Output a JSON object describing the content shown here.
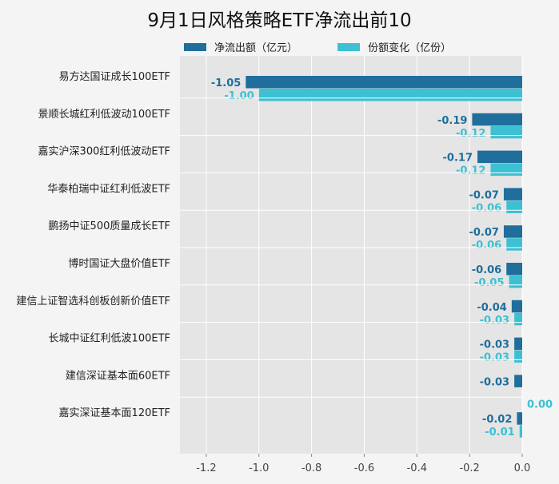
{
  "chart_data": {
    "type": "bar",
    "orientation": "horizontal",
    "title": "9月1日风格策略ETF净流出前10",
    "categories": [
      "易方达国证成长100ETF",
      "景顺长城红利低波动100ETF",
      "嘉实沪深300红利低波动ETF",
      "华泰柏瑞中证红利低波ETF",
      "鹏扬中证500质量成长ETF",
      "博时国证大盘价值ETF",
      "建信上证智选科创板创新价值ETF",
      "长城中证红利低波100ETF",
      "建信深证基本面60ETF",
      "嘉实深证基本面120ETF"
    ],
    "series": [
      {
        "name": "净流出额（亿元）",
        "color": "#1f6e9c",
        "values": [
          -1.05,
          -0.19,
          -0.17,
          -0.07,
          -0.07,
          -0.06,
          -0.04,
          -0.03,
          -0.03,
          -0.02
        ],
        "labels": [
          "-1.05",
          "-0.19",
          "-0.17",
          "-0.07",
          "-0.07",
          "-0.06",
          "-0.04",
          "-0.03",
          "-0.03",
          "-0.02"
        ]
      },
      {
        "name": "份额变化（亿份）",
        "color": "#3cc0d2",
        "values": [
          -1.0,
          -0.12,
          -0.12,
          -0.06,
          -0.06,
          -0.05,
          -0.03,
          -0.03,
          0.0,
          -0.01
        ],
        "labels": [
          "-1.00",
          "-0.12",
          "-0.12",
          "-0.06",
          "-0.06",
          "-0.05",
          "-0.03",
          "-0.03",
          "0.00",
          "-0.01"
        ]
      }
    ],
    "xlim": [
      -1.3,
      0.0
    ],
    "xticks": [
      -1.2,
      -1.0,
      -0.8,
      -0.6,
      -0.4,
      -0.2,
      0.0
    ],
    "xtick_labels": [
      "-1.2",
      "-1.0",
      "-0.8",
      "-0.6",
      "-0.4",
      "-0.2",
      "0.0"
    ],
    "grid": true,
    "legend_position": "top"
  }
}
